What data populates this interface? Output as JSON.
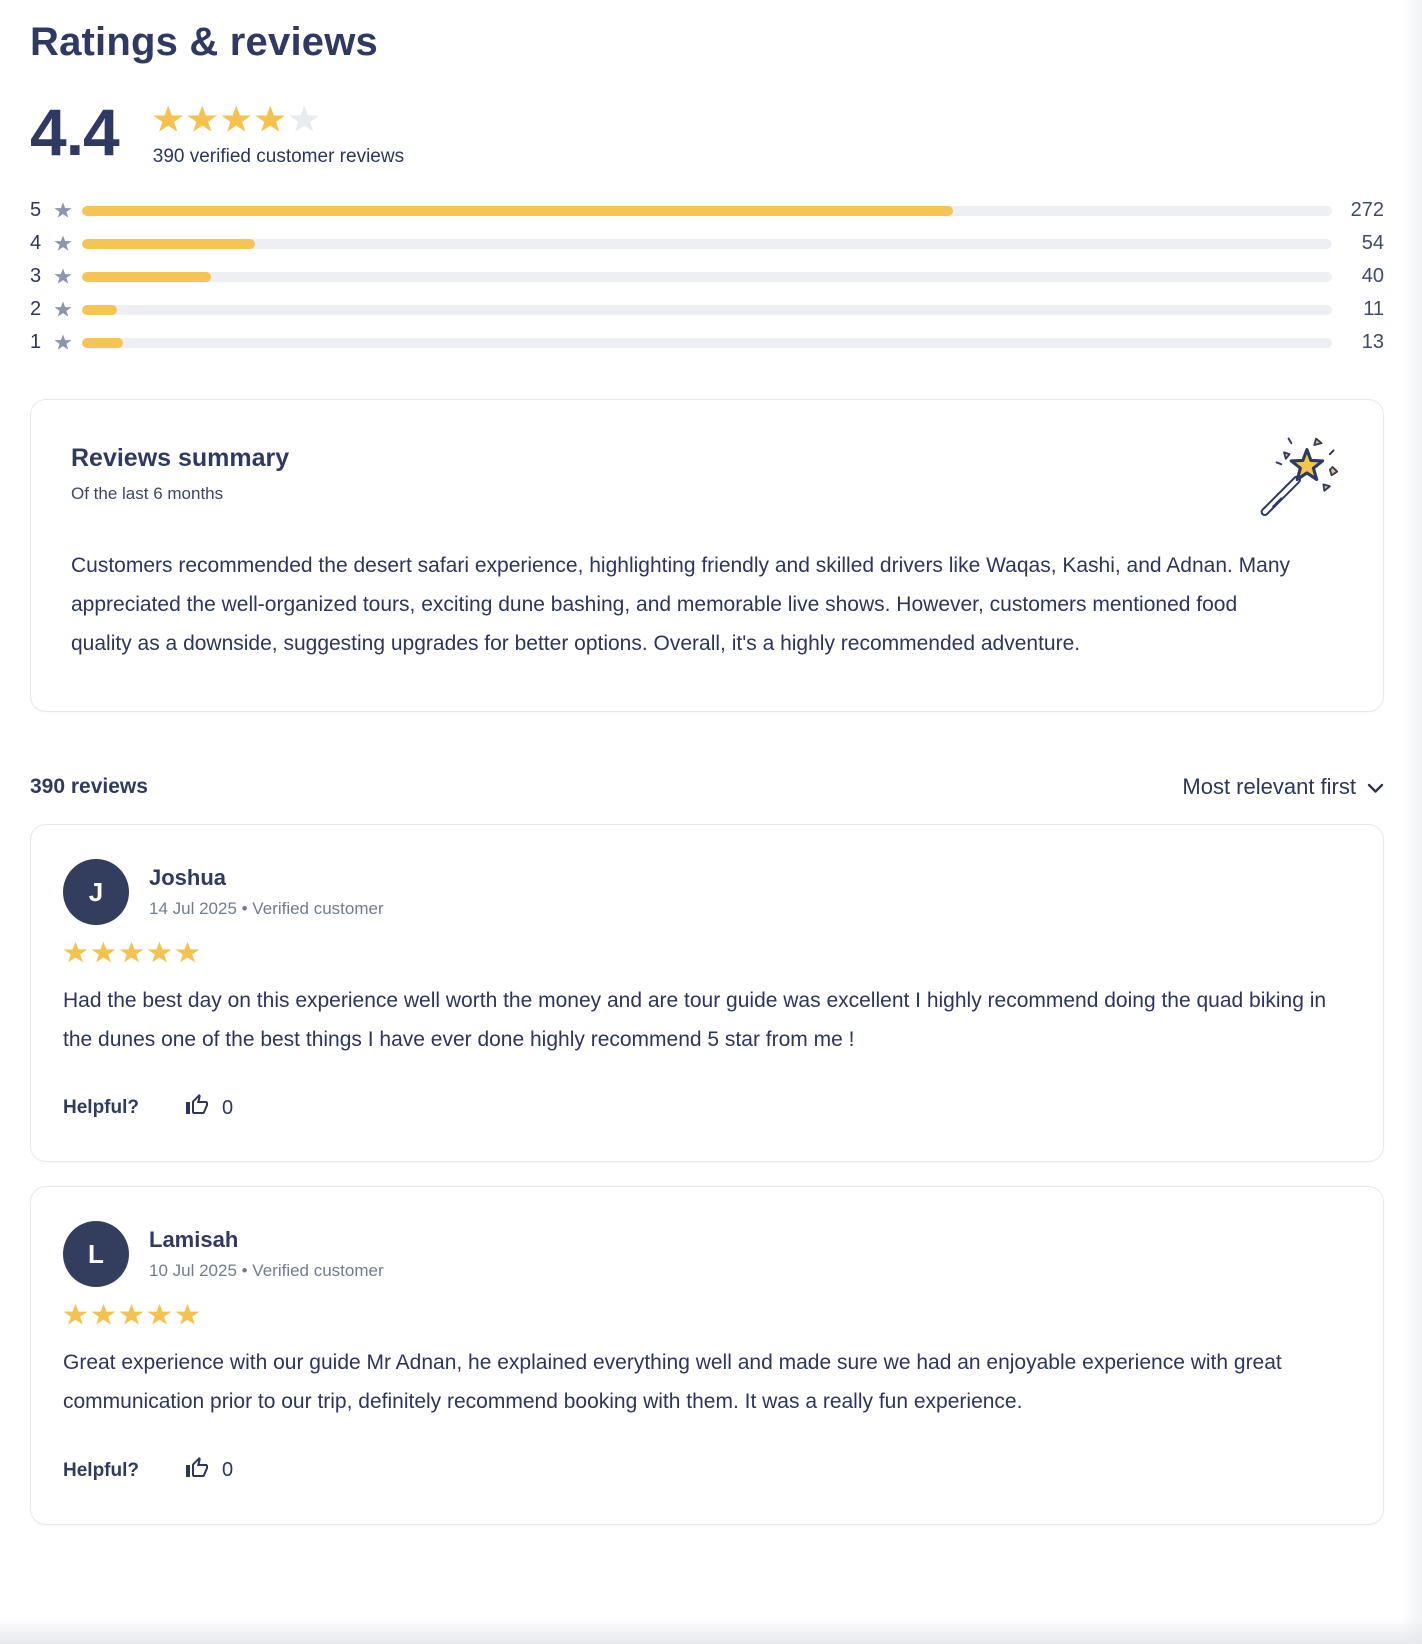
{
  "colors": {
    "accent_yellow": "#f6c453",
    "heading_navy": "#2f3a63",
    "text_navy": "#2b355e",
    "muted_gray": "#707c91",
    "track_gray": "#edeff2",
    "empty_star": "#e7eaf0",
    "row_star_gray": "#8c96ab",
    "avatar_bg": "#333e5e",
    "card_border": "#e6e8ec"
  },
  "header": {
    "title": "Ratings & reviews"
  },
  "overview": {
    "score": "4.4",
    "stars_filled": 4,
    "stars_total": 5,
    "caption": "390 verified customer reviews",
    "total_reviews": 390,
    "distribution": [
      {
        "stars": "5",
        "count": "272",
        "pct": 69.7
      },
      {
        "stars": "4",
        "count": "54",
        "pct": 13.8
      },
      {
        "stars": "3",
        "count": "40",
        "pct": 10.3
      },
      {
        "stars": "2",
        "count": "11",
        "pct": 2.8
      },
      {
        "stars": "1",
        "count": "13",
        "pct": 3.3
      }
    ]
  },
  "summary_card": {
    "title": "Reviews summary",
    "subtitle": "Of the last 6 months",
    "icon": "magic-wand-icon",
    "body": "Customers recommended the desert safari experience, highlighting friendly and skilled drivers like Waqas, Kashi, and Adnan. Many appreciated the well-organized tours, exciting dune bashing, and memorable live shows. However, customers mentioned food quality as a downside, suggesting upgrades for better options. Overall, it's a highly recommended adventure."
  },
  "list_header": {
    "count_label": "390 reviews",
    "sort_label": "Most relevant first",
    "sort_icon": "chevron-down-icon"
  },
  "reviews": [
    {
      "initial": "J",
      "name": "Joshua",
      "meta": "14 Jul 2025 • Verified customer",
      "stars": 5,
      "text": "Had the best day on this experience well worth the money and are tour guide was excellent I highly recommend doing the quad biking in the dunes one of the best things I have ever done highly recommend 5 star from me !",
      "helpful_label": "Helpful?",
      "helpful_count": "0"
    },
    {
      "initial": "L",
      "name": "Lamisah",
      "meta": "10 Jul 2025 • Verified customer",
      "stars": 5,
      "text": "Great experience with our guide Mr Adnan, he explained everything well and made sure we had an enjoyable experience with great communication prior to our trip, definitely recommend booking with them. It was a really fun experience.",
      "helpful_label": "Helpful?",
      "helpful_count": "0"
    }
  ]
}
